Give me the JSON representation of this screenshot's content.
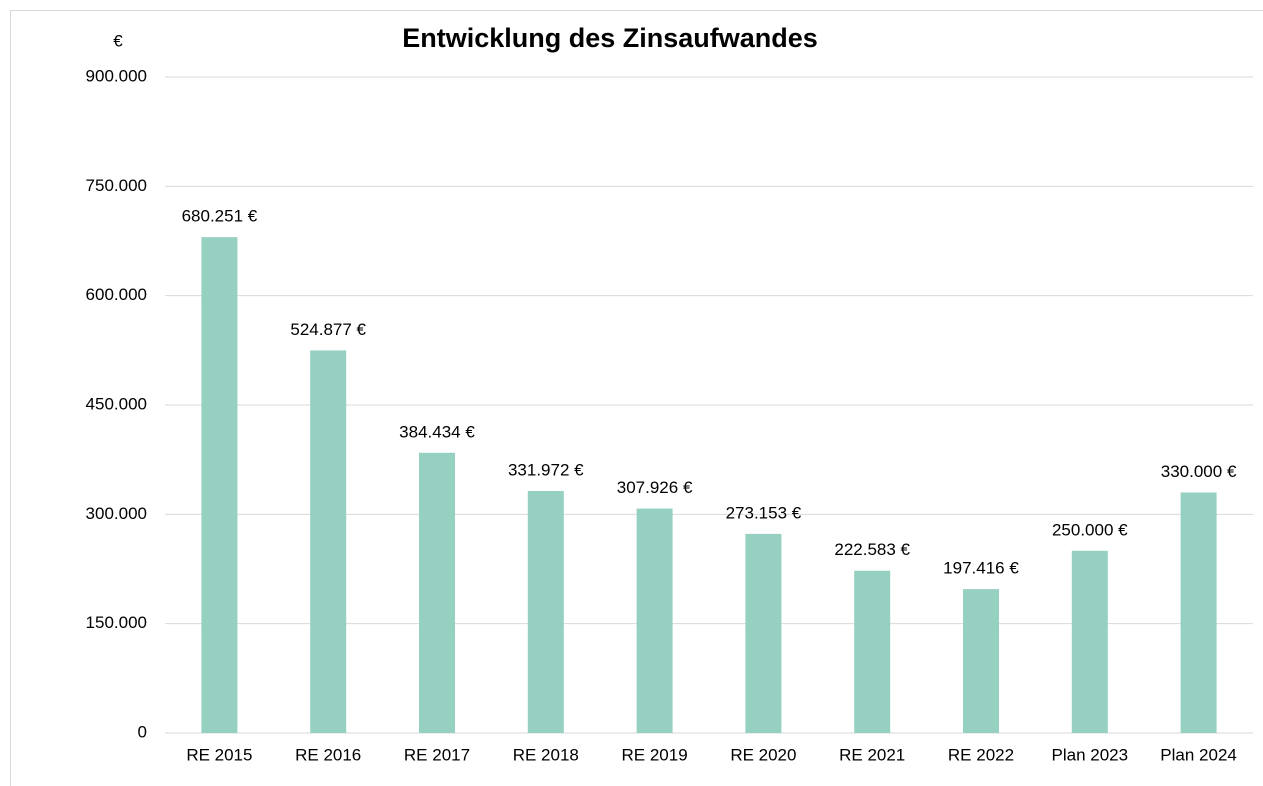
{
  "chart_data": {
    "type": "bar",
    "title": "Entwicklung des Zinsaufwandes",
    "y_label": "€",
    "categories": [
      "RE 2015",
      "RE 2016",
      "RE 2017",
      "RE 2018",
      "RE 2019",
      "RE 2020",
      "RE 2021",
      "RE 2022",
      "Plan 2023",
      "Plan 2024"
    ],
    "values": [
      680251,
      524877,
      384434,
      331972,
      307926,
      273153,
      222583,
      197416,
      250000,
      330000
    ],
    "value_labels": [
      "680.251 €",
      "524.877 €",
      "384.434 €",
      "331.972 €",
      "307.926 €",
      "273.153 €",
      "222.583 €",
      "197.416 €",
      "250.000 €",
      "330.000 €"
    ],
    "color": "#96d0c1",
    "ylim": [
      0,
      900000
    ],
    "yticks": [
      0,
      {
        "value": 150000,
        "label": "150.000"
      },
      {
        "value": 300000,
        "label": "300.000"
      },
      {
        "value": 450000,
        "label": "450.000"
      },
      {
        "value": 600000,
        "label": "600.000"
      },
      {
        "value": 750000,
        "label": "750.000"
      },
      {
        "value": 900000,
        "label": "900.000"
      }
    ],
    "grid": true
  }
}
